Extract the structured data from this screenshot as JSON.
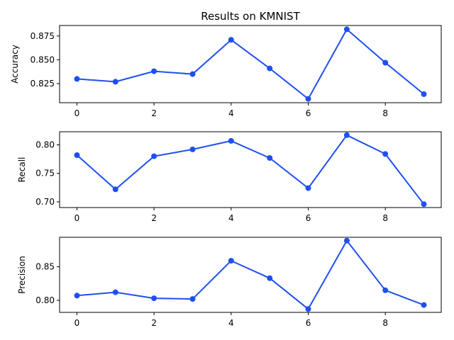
{
  "title": "Results on KMNIST",
  "colors": {
    "series": "#1f4ff0"
  },
  "chart_data": [
    {
      "type": "line",
      "ylabel": "Accuracy",
      "x": [
        0,
        1,
        2,
        3,
        4,
        5,
        6,
        7,
        8,
        9
      ],
      "values": [
        0.83,
        0.827,
        0.838,
        0.835,
        0.871,
        0.841,
        0.809,
        0.882,
        0.847,
        0.814
      ],
      "xlim": [
        -0.45,
        9.45
      ],
      "ylim": [
        0.805,
        0.886
      ],
      "xticks": [
        0,
        2,
        4,
        6,
        8
      ],
      "yticks": [
        0.825,
        0.85,
        0.875
      ],
      "ytick_labels": [
        "0.825",
        "0.850",
        "0.875"
      ],
      "grid": false
    },
    {
      "type": "line",
      "ylabel": "Recall",
      "x": [
        0,
        1,
        2,
        3,
        4,
        5,
        6,
        7,
        8,
        9
      ],
      "values": [
        0.782,
        0.722,
        0.78,
        0.792,
        0.807,
        0.777,
        0.724,
        0.817,
        0.784,
        0.696
      ],
      "xlim": [
        -0.45,
        9.45
      ],
      "ylim": [
        0.69,
        0.823
      ],
      "xticks": [
        0,
        2,
        4,
        6,
        8
      ],
      "yticks": [
        0.7,
        0.75,
        0.8
      ],
      "ytick_labels": [
        "0.70",
        "0.75",
        "0.80"
      ],
      "grid": false
    },
    {
      "type": "line",
      "ylabel": "Precision",
      "x": [
        0,
        1,
        2,
        3,
        4,
        5,
        6,
        7,
        8,
        9
      ],
      "values": [
        0.807,
        0.812,
        0.803,
        0.802,
        0.859,
        0.833,
        0.787,
        0.889,
        0.815,
        0.793
      ],
      "xlim": [
        -0.45,
        9.45
      ],
      "ylim": [
        0.782,
        0.894
      ],
      "xticks": [
        0,
        2,
        4,
        6,
        8
      ],
      "yticks": [
        0.8,
        0.85
      ],
      "ytick_labels": [
        "0.80",
        "0.85"
      ],
      "grid": false
    }
  ]
}
